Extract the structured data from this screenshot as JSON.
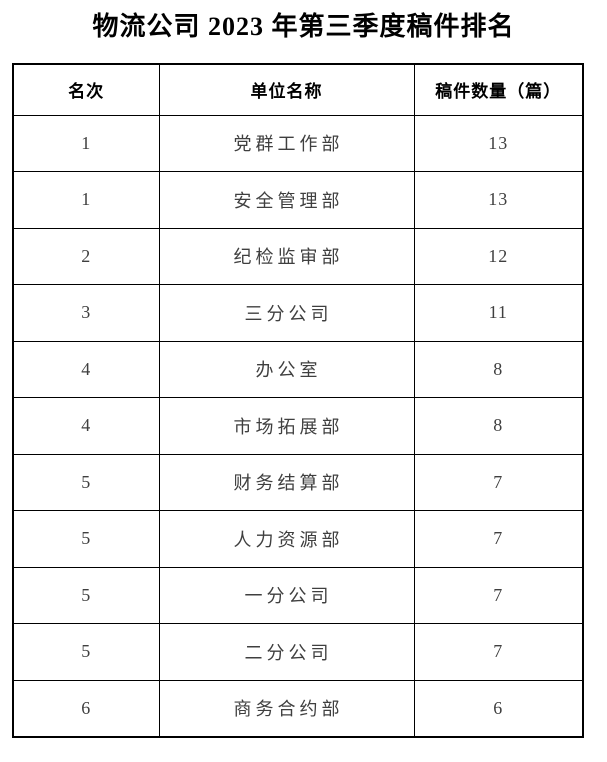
{
  "title": "物流公司 2023 年第三季度稿件排名",
  "colors": {
    "background": "#ffffff",
    "border": "#000000",
    "header_text": "#000000",
    "body_text": "#3f3f3f"
  },
  "table": {
    "columns": [
      "名次",
      "单位名称",
      "稿件数量（篇）"
    ],
    "rows": [
      {
        "rank": "1",
        "unit": "党群工作部",
        "count": "13"
      },
      {
        "rank": "1",
        "unit": "安全管理部",
        "count": "13"
      },
      {
        "rank": "2",
        "unit": "纪检监审部",
        "count": "12"
      },
      {
        "rank": "3",
        "unit": "三分公司",
        "count": "11"
      },
      {
        "rank": "4",
        "unit": "办公室",
        "count": "8"
      },
      {
        "rank": "4",
        "unit": "市场拓展部",
        "count": "8"
      },
      {
        "rank": "5",
        "unit": "财务结算部",
        "count": "7"
      },
      {
        "rank": "5",
        "unit": "人力资源部",
        "count": "7"
      },
      {
        "rank": "5",
        "unit": "一分公司",
        "count": "7"
      },
      {
        "rank": "5",
        "unit": "二分公司",
        "count": "7"
      },
      {
        "rank": "6",
        "unit": "商务合约部",
        "count": "6"
      }
    ]
  }
}
